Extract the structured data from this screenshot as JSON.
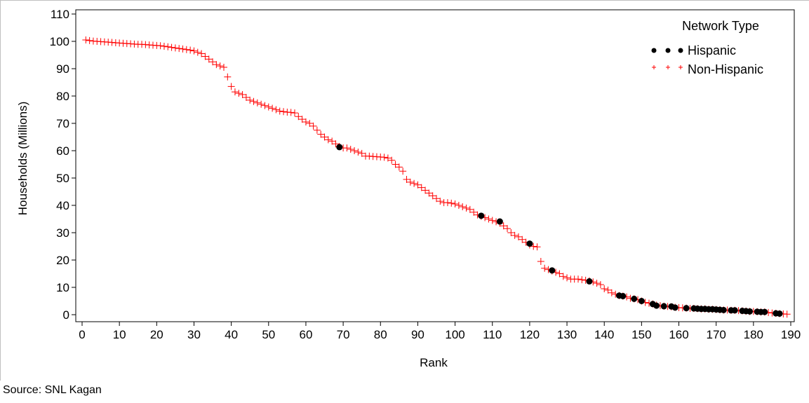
{
  "chart_data": {
    "type": "scatter",
    "title": "",
    "xlabel": "Rank",
    "ylabel": "Households (Millions)",
    "xlim": [
      0,
      190
    ],
    "ylim": [
      0,
      110
    ],
    "x_ticks": [
      0,
      10,
      20,
      30,
      40,
      50,
      60,
      70,
      80,
      90,
      100,
      110,
      120,
      130,
      140,
      150,
      160,
      170,
      180,
      190
    ],
    "y_ticks": [
      0,
      10,
      20,
      30,
      40,
      50,
      60,
      70,
      80,
      90,
      100,
      110
    ],
    "grid": false,
    "legend": {
      "title": "Network Type",
      "position": "top-right"
    },
    "series": [
      {
        "name": "Hispanic",
        "marker": "circle",
        "color": "#000000",
        "points": [
          [
            69,
            61.3
          ],
          [
            107,
            36.2
          ],
          [
            112,
            34.1
          ],
          [
            120,
            26.0
          ],
          [
            126,
            16.2
          ],
          [
            136,
            12.2
          ],
          [
            144,
            7.0
          ],
          [
            145,
            6.8
          ],
          [
            148,
            5.8
          ],
          [
            150,
            5.0
          ],
          [
            153,
            3.9
          ],
          [
            154,
            3.3
          ],
          [
            156,
            3.1
          ],
          [
            158,
            3.0
          ],
          [
            159,
            2.6
          ],
          [
            162,
            2.4
          ],
          [
            164,
            2.3
          ],
          [
            165,
            2.2
          ],
          [
            166,
            2.1
          ],
          [
            167,
            2.1
          ],
          [
            168,
            2.0
          ],
          [
            169,
            2.0
          ],
          [
            170,
            1.9
          ],
          [
            171,
            1.8
          ],
          [
            172,
            1.7
          ],
          [
            174,
            1.6
          ],
          [
            175,
            1.6
          ],
          [
            177,
            1.4
          ],
          [
            178,
            1.3
          ],
          [
            179,
            1.2
          ],
          [
            181,
            1.1
          ],
          [
            182,
            1.0
          ],
          [
            183,
            1.0
          ],
          [
            186,
            0.5
          ],
          [
            187,
            0.4
          ]
        ]
      },
      {
        "name": "Non-Hispanic",
        "marker": "plus",
        "color": "#ff0000",
        "points": [
          [
            1,
            100.5
          ],
          [
            2,
            100.3
          ],
          [
            3,
            100.1
          ],
          [
            4,
            100.0
          ],
          [
            5,
            99.9
          ],
          [
            6,
            99.8
          ],
          [
            7,
            99.7
          ],
          [
            8,
            99.6
          ],
          [
            9,
            99.5
          ],
          [
            10,
            99.4
          ],
          [
            11,
            99.3
          ],
          [
            12,
            99.2
          ],
          [
            13,
            99.1
          ],
          [
            14,
            99.0
          ],
          [
            15,
            98.9
          ],
          [
            16,
            98.9
          ],
          [
            17,
            98.8
          ],
          [
            18,
            98.7
          ],
          [
            19,
            98.6
          ],
          [
            20,
            98.5
          ],
          [
            21,
            98.4
          ],
          [
            22,
            98.2
          ],
          [
            23,
            98.0
          ],
          [
            24,
            97.8
          ],
          [
            25,
            97.6
          ],
          [
            26,
            97.4
          ],
          [
            27,
            97.2
          ],
          [
            28,
            97.0
          ],
          [
            29,
            96.8
          ],
          [
            30,
            96.5
          ],
          [
            31,
            96.0
          ],
          [
            32,
            95.5
          ],
          [
            33,
            94.5
          ],
          [
            34,
            93.5
          ],
          [
            35,
            92.5
          ],
          [
            36,
            91.5
          ],
          [
            37,
            91.0
          ],
          [
            38,
            90.5
          ],
          [
            39,
            87.0
          ],
          [
            40,
            83.5
          ],
          [
            41,
            81.5
          ],
          [
            42,
            81.0
          ],
          [
            43,
            80.5
          ],
          [
            44,
            79.5
          ],
          [
            45,
            78.5
          ],
          [
            46,
            78.0
          ],
          [
            47,
            77.5
          ],
          [
            48,
            77.0
          ],
          [
            49,
            76.5
          ],
          [
            50,
            76.0
          ],
          [
            51,
            75.5
          ],
          [
            52,
            75.0
          ],
          [
            53,
            74.5
          ],
          [
            54,
            74.3
          ],
          [
            55,
            74.1
          ],
          [
            56,
            74.0
          ],
          [
            57,
            73.8
          ],
          [
            58,
            72.5
          ],
          [
            59,
            71.5
          ],
          [
            60,
            70.5
          ],
          [
            61,
            70.0
          ],
          [
            62,
            69.0
          ],
          [
            63,
            67.5
          ],
          [
            64,
            66.0
          ],
          [
            65,
            65.0
          ],
          [
            66,
            64.0
          ],
          [
            67,
            63.5
          ],
          [
            68,
            62.5
          ],
          [
            69,
            61.5
          ],
          [
            70,
            61.0
          ],
          [
            71,
            61.0
          ],
          [
            72,
            60.5
          ],
          [
            73,
            60.0
          ],
          [
            74,
            59.5
          ],
          [
            75,
            59.0
          ],
          [
            76,
            58.0
          ],
          [
            77,
            58.0
          ],
          [
            78,
            57.9
          ],
          [
            79,
            57.8
          ],
          [
            80,
            57.7
          ],
          [
            81,
            57.6
          ],
          [
            82,
            57.3
          ],
          [
            83,
            56.5
          ],
          [
            84,
            55.0
          ],
          [
            85,
            54.0
          ],
          [
            86,
            52.5
          ],
          [
            87,
            49.5
          ],
          [
            88,
            48.5
          ],
          [
            89,
            48.0
          ],
          [
            90,
            47.5
          ],
          [
            91,
            46.5
          ],
          [
            92,
            45.5
          ],
          [
            93,
            44.5
          ],
          [
            94,
            43.5
          ],
          [
            95,
            42.5
          ],
          [
            96,
            41.5
          ],
          [
            97,
            41.0
          ],
          [
            98,
            41.0
          ],
          [
            99,
            40.8
          ],
          [
            100,
            40.5
          ],
          [
            101,
            40.0
          ],
          [
            102,
            39.5
          ],
          [
            103,
            39.0
          ],
          [
            104,
            38.5
          ],
          [
            105,
            37.5
          ],
          [
            106,
            36.5
          ],
          [
            107,
            36.0
          ],
          [
            108,
            35.5
          ],
          [
            109,
            35.0
          ],
          [
            110,
            34.5
          ],
          [
            111,
            34.0
          ],
          [
            112,
            33.5
          ],
          [
            113,
            32.5
          ],
          [
            114,
            31.5
          ],
          [
            115,
            30.0
          ],
          [
            116,
            29.0
          ],
          [
            117,
            28.5
          ],
          [
            118,
            27.5
          ],
          [
            119,
            26.5
          ],
          [
            120,
            25.5
          ],
          [
            121,
            25.0
          ],
          [
            122,
            24.8
          ],
          [
            123,
            19.5
          ],
          [
            124,
            17.0
          ],
          [
            125,
            16.5
          ],
          [
            126,
            16.0
          ],
          [
            127,
            15.5
          ],
          [
            128,
            15.0
          ],
          [
            129,
            14.0
          ],
          [
            130,
            13.5
          ],
          [
            131,
            13.0
          ],
          [
            132,
            13.0
          ],
          [
            133,
            13.0
          ],
          [
            134,
            12.8
          ],
          [
            135,
            12.6
          ],
          [
            136,
            12.4
          ],
          [
            137,
            12.0
          ],
          [
            138,
            11.5
          ],
          [
            139,
            11.0
          ],
          [
            140,
            9.5
          ],
          [
            141,
            9.0
          ],
          [
            142,
            8.0
          ],
          [
            143,
            7.5
          ],
          [
            144,
            7.0
          ],
          [
            145,
            6.8
          ],
          [
            146,
            6.5
          ],
          [
            147,
            6.0
          ],
          [
            148,
            5.8
          ],
          [
            149,
            5.5
          ],
          [
            150,
            5.0
          ],
          [
            151,
            4.5
          ],
          [
            152,
            4.2
          ],
          [
            153,
            3.9
          ],
          [
            154,
            3.5
          ],
          [
            155,
            3.3
          ],
          [
            156,
            3.1
          ],
          [
            157,
            3.0
          ],
          [
            158,
            2.9
          ],
          [
            159,
            2.7
          ],
          [
            160,
            2.6
          ],
          [
            161,
            2.5
          ],
          [
            162,
            2.4
          ],
          [
            163,
            2.3
          ],
          [
            164,
            2.3
          ],
          [
            165,
            2.2
          ],
          [
            166,
            2.1
          ],
          [
            167,
            2.1
          ],
          [
            168,
            2.0
          ],
          [
            169,
            2.0
          ],
          [
            170,
            1.9
          ],
          [
            171,
            1.8
          ],
          [
            172,
            1.7
          ],
          [
            173,
            1.7
          ],
          [
            174,
            1.6
          ],
          [
            175,
            1.6
          ],
          [
            176,
            1.5
          ],
          [
            177,
            1.4
          ],
          [
            178,
            1.3
          ],
          [
            179,
            1.2
          ],
          [
            180,
            1.2
          ],
          [
            181,
            1.1
          ],
          [
            182,
            1.0
          ],
          [
            183,
            1.0
          ],
          [
            184,
            0.8
          ],
          [
            185,
            0.6
          ],
          [
            186,
            0.5
          ],
          [
            187,
            0.4
          ],
          [
            188,
            0.3
          ],
          [
            189,
            0.2
          ]
        ]
      }
    ]
  },
  "footer": {
    "source": "Source: SNL Kagan"
  }
}
